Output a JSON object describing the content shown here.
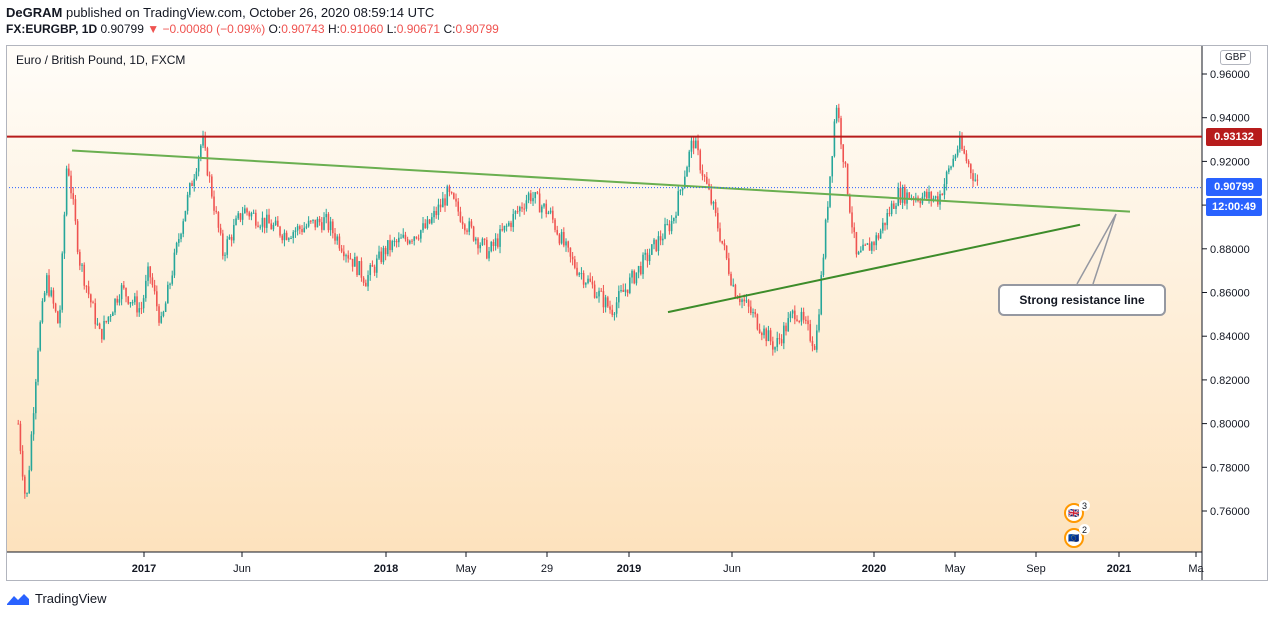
{
  "header": {
    "author": "DeGRAM",
    "published": "published on TradingView.com, October 26, 2020 08:59:14 UTC",
    "symbol": "FX:EURGBP, 1D",
    "last": "0.90799",
    "change": "−0.00080 (−0.09%)",
    "o_label": "O:",
    "o_value": "0.90743",
    "h_label": "H:",
    "h_value": "0.91060",
    "l_label": "L:",
    "l_value": "0.90671",
    "c_label": "C:",
    "c_value": "0.90799"
  },
  "legend": {
    "title": "Euro / British Pound, 1D, FXCM"
  },
  "currency": "GBP",
  "price_tags": {
    "resistance": "0.93132",
    "last": "0.90799",
    "countdown": "12:00:49"
  },
  "annotation": {
    "label": "Strong resistance line"
  },
  "events": {
    "gb_count": "3",
    "eu_count": "2"
  },
  "footer": {
    "brand": "TradingView"
  },
  "colors": {
    "up": "#26a69a",
    "down": "#ef5350",
    "resistance": "#b71c1c",
    "trend_upper": "#6aaf50",
    "trend_lower": "#3d8c2a",
    "bg_top": "#fffdf9",
    "bg_bottom": "#fde2bd",
    "last_tag": "#2962ff"
  },
  "chart_data": {
    "type": "candlestick",
    "title": "Euro / British Pound, 1D, FXCM",
    "y_axis": {
      "ticks": [
        "0.96000",
        "0.94000",
        "0.92000",
        "0.90000",
        "0.88000",
        "0.86000",
        "0.84000",
        "0.82000",
        "0.80000",
        "0.78000",
        "0.76000"
      ],
      "range": [
        0.745,
        0.97
      ],
      "position": "right"
    },
    "x_axis": {
      "ticks": [
        "2017",
        "Jun",
        "2018",
        "May",
        "29",
        "2019",
        "Jun",
        "2020",
        "May",
        "Sep",
        "2021",
        "Ma"
      ]
    },
    "series": [
      {
        "name": "FX:EURGBP",
        "approx_close_path": [
          {
            "x": "Nov 2016",
            "y": 0.8
          },
          {
            "x": "Nov 2016",
            "y": 0.762
          },
          {
            "x": "Dec 2016",
            "y": 0.84
          },
          {
            "x": "Dec 2016",
            "y": 0.866
          },
          {
            "x": "Jan 2017",
            "y": 0.844
          },
          {
            "x": "Jan 2017",
            "y": 0.922
          },
          {
            "x": "Feb 2017",
            "y": 0.875
          },
          {
            "x": "Mar 2017",
            "y": 0.84
          },
          {
            "x": "Apr 2017",
            "y": 0.862
          },
          {
            "x": "May 2017",
            "y": 0.852
          },
          {
            "x": "May 2017",
            "y": 0.87
          },
          {
            "x": "Jun 2017",
            "y": 0.845
          },
          {
            "x": "Jul 2017",
            "y": 0.892
          },
          {
            "x": "Aug 2017",
            "y": 0.93
          },
          {
            "x": "Sep 2017",
            "y": 0.878
          },
          {
            "x": "Oct 2017",
            "y": 0.898
          },
          {
            "x": "Dec 2017",
            "y": 0.887
          },
          {
            "x": "Feb 2018",
            "y": 0.893
          },
          {
            "x": "Apr 2018",
            "y": 0.866
          },
          {
            "x": "May 2018",
            "y": 0.88
          },
          {
            "x": "Jul 2018",
            "y": 0.89
          },
          {
            "x": "Aug 2018",
            "y": 0.905
          },
          {
            "x": "Sep 2018",
            "y": 0.89
          },
          {
            "x": "Oct 2018",
            "y": 0.878
          },
          {
            "x": "Dec 2018",
            "y": 0.905
          },
          {
            "x": "Jan 2019",
            "y": 0.896
          },
          {
            "x": "Feb 2019",
            "y": 0.875
          },
          {
            "x": "Apr 2019",
            "y": 0.852
          },
          {
            "x": "May 2019",
            "y": 0.866
          },
          {
            "x": "Jul 2019",
            "y": 0.893
          },
          {
            "x": "Aug 2019",
            "y": 0.93
          },
          {
            "x": "Sep 2019",
            "y": 0.898
          },
          {
            "x": "Oct 2019",
            "y": 0.862
          },
          {
            "x": "Dec 2019",
            "y": 0.835
          },
          {
            "x": "Jan 2020",
            "y": 0.852
          },
          {
            "x": "Feb 2020",
            "y": 0.836
          },
          {
            "x": "Mar 2020",
            "y": 0.948
          },
          {
            "x": "Apr 2020",
            "y": 0.875
          },
          {
            "x": "May 2020",
            "y": 0.885
          },
          {
            "x": "Jun 2020",
            "y": 0.905
          },
          {
            "x": "Aug 2020",
            "y": 0.903
          },
          {
            "x": "Sep 2020",
            "y": 0.928
          },
          {
            "x": "Oct 2020",
            "y": 0.908
          }
        ]
      }
    ],
    "lines": [
      {
        "name": "resistance",
        "type": "horizontal",
        "y": 0.93132
      },
      {
        "name": "upper-trendline",
        "from": {
          "x": "Jan 2017",
          "y": 0.925
        },
        "to": {
          "x": "Dec 2020",
          "y": 0.897
        }
      },
      {
        "name": "lower-trendline",
        "from": {
          "x": "Apr 2019",
          "y": 0.851
        },
        "to": {
          "x": "Nov 2020",
          "y": 0.891
        }
      }
    ],
    "grid": false,
    "legend": "top-left"
  }
}
